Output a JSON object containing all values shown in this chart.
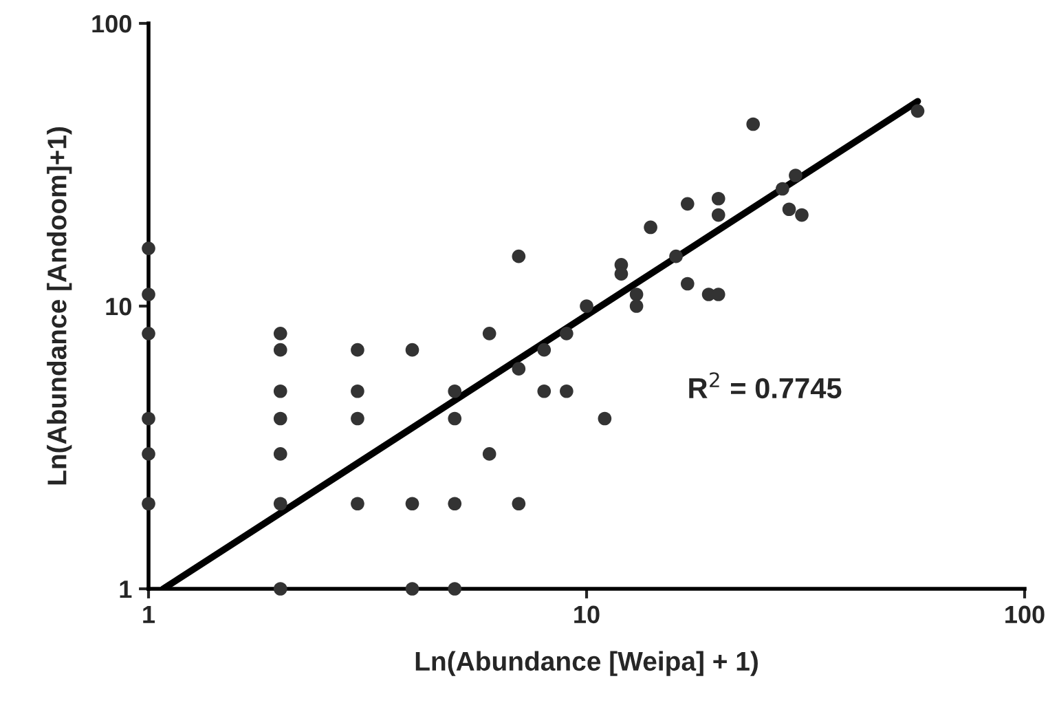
{
  "chart_data": {
    "type": "scatter",
    "xlabel": "Ln(Abundance [Weipa] + 1)",
    "ylabel": "Ln(Abundance [Andoom]+1)",
    "log": "xy",
    "grid": false,
    "xlim": [
      1,
      100
    ],
    "ylim": [
      1,
      100
    ],
    "xticks": [
      1,
      10,
      100
    ],
    "yticks": [
      1,
      10,
      100
    ],
    "annotations": [
      "R$^{2}$ = 0.7745"
    ],
    "series": [
      {
        "color": "#333333",
        "marker": "circle",
        "x": [
          1,
          1,
          1,
          1,
          1,
          1,
          2,
          2,
          2,
          2,
          2,
          2,
          2,
          3,
          3,
          3,
          3,
          4,
          4,
          4,
          5,
          5,
          5,
          5,
          6,
          6,
          7,
          7,
          7,
          8,
          8,
          9,
          9,
          10,
          11,
          12,
          12,
          13,
          13,
          14,
          16,
          17,
          17,
          19,
          20,
          20,
          20,
          24,
          28,
          29,
          30,
          31,
          57
        ],
        "values": [
          16,
          11,
          8,
          4,
          3,
          2,
          8,
          7,
          5,
          4,
          3,
          2,
          1,
          7,
          5,
          4,
          2,
          7,
          2,
          1,
          5,
          4,
          2,
          1,
          8,
          3,
          15,
          6,
          2,
          7,
          5,
          8,
          5,
          10,
          4,
          14,
          13,
          11,
          10,
          19,
          15,
          23,
          12,
          11,
          24,
          21,
          11,
          44,
          26,
          22,
          29,
          21,
          49
        ]
      },
      {
        "type": "line",
        "marker": "none",
        "color": "#000000",
        "x": [
          1.08,
          57
        ],
        "values": [
          1,
          53
        ]
      }
    ]
  }
}
